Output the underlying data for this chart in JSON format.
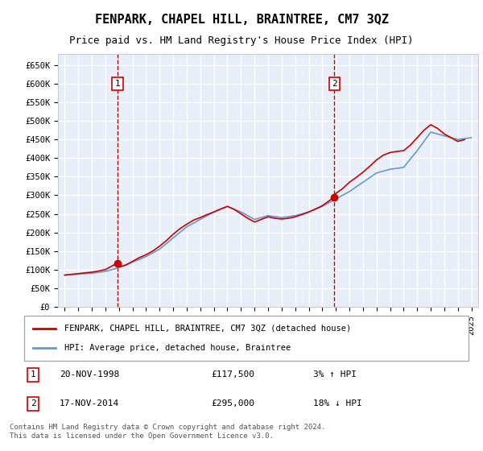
{
  "title": "FENPARK, CHAPEL HILL, BRAINTREE, CM7 3QZ",
  "subtitle": "Price paid vs. HM Land Registry's House Price Index (HPI)",
  "ylabel_ticks": [
    "£0",
    "£50K",
    "£100K",
    "£150K",
    "£200K",
    "£250K",
    "£300K",
    "£350K",
    "£400K",
    "£450K",
    "£500K",
    "£550K",
    "£600K",
    "£650K"
  ],
  "ylim": [
    0,
    680000
  ],
  "xlim_start": 1995.0,
  "xlim_end": 2025.5,
  "background_color": "#e8eef8",
  "plot_bg_color": "#e8eef8",
  "grid_color": "#ffffff",
  "marker1_x": 1998.89,
  "marker1_y": 117500,
  "marker1_label": "1",
  "marker1_date": "20-NOV-1998",
  "marker1_price": "£117,500",
  "marker1_hpi": "3% ↑ HPI",
  "marker2_x": 2014.89,
  "marker2_y": 295000,
  "marker2_label": "2",
  "marker2_date": "17-NOV-2014",
  "marker2_price": "£295,000",
  "marker2_hpi": "18% ↓ HPI",
  "vline1_x": 1998.89,
  "vline2_x": 2014.89,
  "vline_color": "#cc0000",
  "property_line_color": "#cc0000",
  "hpi_line_color": "#6699cc",
  "legend_label1": "FENPARK, CHAPEL HILL, BRAINTREE, CM7 3QZ (detached house)",
  "legend_label2": "HPI: Average price, detached house, Braintree",
  "footer": "Contains HM Land Registry data © Crown copyright and database right 2024.\nThis data is licensed under the Open Government Licence v3.0.",
  "x_years": [
    1995,
    1996,
    1997,
    1998,
    1999,
    2000,
    2001,
    2002,
    2003,
    2004,
    2005,
    2006,
    2007,
    2008,
    2009,
    2010,
    2011,
    2012,
    2013,
    2014,
    2015,
    2016,
    2017,
    2018,
    2019,
    2020,
    2021,
    2022,
    2023,
    2024,
    2025
  ],
  "hpi_values": [
    85000,
    88000,
    90000,
    95000,
    105000,
    120000,
    135000,
    155000,
    185000,
    215000,
    235000,
    255000,
    270000,
    255000,
    235000,
    245000,
    240000,
    245000,
    255000,
    270000,
    290000,
    310000,
    335000,
    360000,
    370000,
    375000,
    420000,
    470000,
    460000,
    450000,
    455000
  ],
  "property_values_x": [
    1995.0,
    1995.5,
    1996.0,
    1996.5,
    1997.0,
    1997.5,
    1998.0,
    1998.89,
    1999.0,
    1999.5,
    2000.0,
    2000.5,
    2001.0,
    2001.5,
    2002.0,
    2002.5,
    2003.0,
    2003.5,
    2004.0,
    2004.5,
    2005.0,
    2005.5,
    2006.0,
    2006.5,
    2007.0,
    2007.5,
    2008.0,
    2008.5,
    2009.0,
    2009.5,
    2010.0,
    2010.5,
    2011.0,
    2011.5,
    2012.0,
    2012.5,
    2013.0,
    2013.5,
    2014.0,
    2014.89,
    2015.0,
    2015.5,
    2016.0,
    2016.5,
    2017.0,
    2017.5,
    2018.0,
    2018.5,
    2019.0,
    2019.5,
    2020.0,
    2020.5,
    2021.0,
    2021.5,
    2022.0,
    2022.5,
    2023.0,
    2023.5,
    2024.0,
    2024.5
  ],
  "property_values_y": [
    85000,
    87000,
    89000,
    91000,
    93000,
    96000,
    100000,
    117500,
    107000,
    112000,
    122000,
    132000,
    140000,
    150000,
    163000,
    178000,
    195000,
    210000,
    222000,
    233000,
    240000,
    248000,
    255000,
    263000,
    270000,
    262000,
    250000,
    238000,
    228000,
    235000,
    242000,
    238000,
    236000,
    238000,
    242000,
    248000,
    255000,
    263000,
    272000,
    295000,
    305000,
    318000,
    335000,
    348000,
    362000,
    378000,
    395000,
    408000,
    415000,
    418000,
    420000,
    435000,
    455000,
    475000,
    490000,
    480000,
    465000,
    455000,
    445000,
    450000
  ]
}
